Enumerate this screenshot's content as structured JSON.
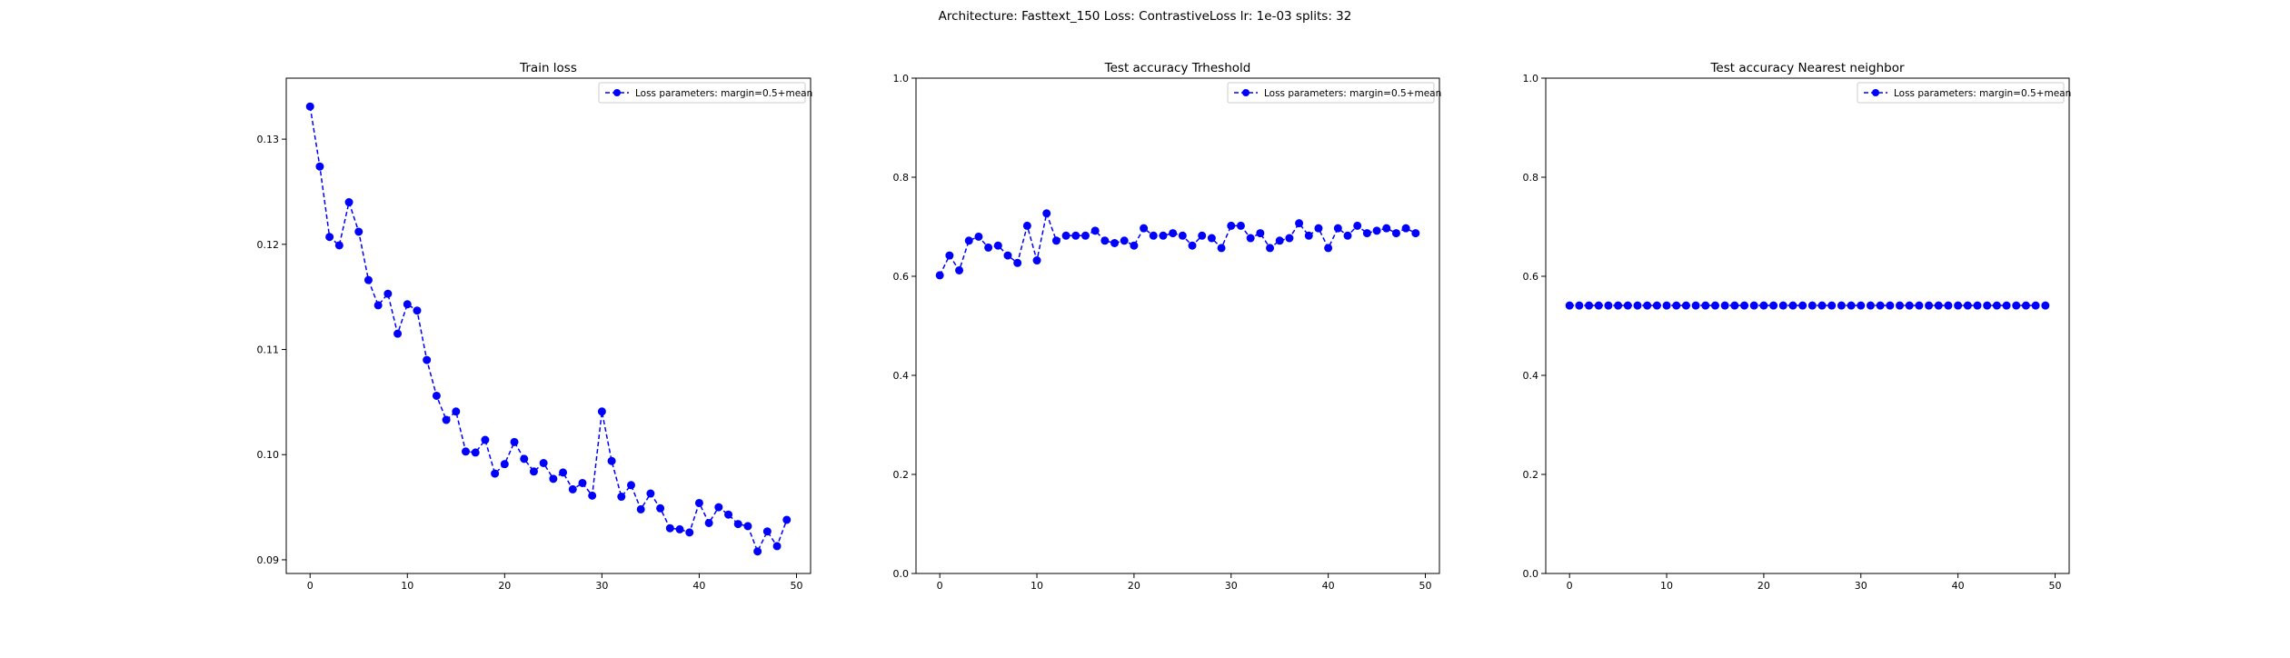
{
  "suptitle": "Architecture: Fasttext_150 Loss: ContrastiveLoss lr: 1e-03 splits: 32",
  "colors": {
    "series": "#0000ff",
    "axes": "#000000",
    "background": "#ffffff"
  },
  "chart_data": [
    {
      "type": "line",
      "title": "Train loss",
      "xlabel": "",
      "ylabel": "",
      "xlim": [
        -2.45,
        51.45
      ],
      "ylim": [
        0.0887,
        0.1358
      ],
      "xticks": [
        0,
        10,
        20,
        30,
        40,
        50
      ],
      "yticks": [
        0.09,
        0.1,
        0.11,
        0.12,
        0.13
      ],
      "ytick_labels": [
        "0.09",
        "0.10",
        "0.11",
        "0.12",
        "0.13"
      ],
      "grid": false,
      "legend_position": "top-right",
      "series": [
        {
          "name": "Loss parameters: margin=0.5+mean",
          "style": "dashed-with-circle-markers",
          "x": [
            0,
            1,
            2,
            3,
            4,
            5,
            6,
            7,
            8,
            9,
            10,
            11,
            12,
            13,
            14,
            15,
            16,
            17,
            18,
            19,
            20,
            21,
            22,
            23,
            24,
            25,
            26,
            27,
            28,
            29,
            30,
            31,
            32,
            33,
            34,
            35,
            36,
            37,
            38,
            39,
            40,
            41,
            42,
            43,
            44,
            45,
            46,
            47,
            48,
            49
          ],
          "values": [
            0.1331,
            0.1274,
            0.1207,
            0.1199,
            0.124,
            0.1212,
            0.1166,
            0.1142,
            0.1153,
            0.1115,
            0.1143,
            0.1137,
            0.109,
            0.1056,
            0.1033,
            0.1041,
            0.1003,
            0.1002,
            0.1014,
            0.0982,
            0.0991,
            0.1012,
            0.0996,
            0.0984,
            0.0992,
            0.0977,
            0.0983,
            0.0967,
            0.0973,
            0.0961,
            0.1041,
            0.0994,
            0.096,
            0.0971,
            0.0948,
            0.0963,
            0.0949,
            0.093,
            0.0929,
            0.0926,
            0.0954,
            0.0935,
            0.095,
            0.0943,
            0.0934,
            0.0932,
            0.0908,
            0.0927,
            0.0913,
            0.0938
          ]
        }
      ]
    },
    {
      "type": "line",
      "title": "Test accuracy Trheshold",
      "xlabel": "",
      "ylabel": "",
      "xlim": [
        -2.45,
        51.45
      ],
      "ylim": [
        0.0,
        1.0
      ],
      "xticks": [
        0,
        10,
        20,
        30,
        40,
        50
      ],
      "yticks": [
        0.0,
        0.2,
        0.4,
        0.6,
        0.8,
        1.0
      ],
      "ytick_labels": [
        "0.0",
        "0.2",
        "0.4",
        "0.6",
        "0.8",
        "1.0"
      ],
      "grid": false,
      "legend_position": "top-right",
      "series": [
        {
          "name": "Loss parameters: margin=0.5+mean",
          "style": "dashed-with-circle-markers",
          "x": [
            0,
            1,
            2,
            3,
            4,
            5,
            6,
            7,
            8,
            9,
            10,
            11,
            12,
            13,
            14,
            15,
            16,
            17,
            18,
            19,
            20,
            21,
            22,
            23,
            24,
            25,
            26,
            27,
            28,
            29,
            30,
            31,
            32,
            33,
            34,
            35,
            36,
            37,
            38,
            39,
            40,
            41,
            42,
            43,
            44,
            45,
            46,
            47,
            48,
            49
          ],
          "values": [
            0.602,
            0.642,
            0.612,
            0.672,
            0.68,
            0.658,
            0.662,
            0.642,
            0.627,
            0.702,
            0.632,
            0.727,
            0.672,
            0.682,
            0.682,
            0.682,
            0.692,
            0.672,
            0.667,
            0.672,
            0.662,
            0.697,
            0.682,
            0.682,
            0.687,
            0.682,
            0.662,
            0.682,
            0.677,
            0.657,
            0.702,
            0.702,
            0.677,
            0.687,
            0.657,
            0.672,
            0.677,
            0.707,
            0.682,
            0.697,
            0.657,
            0.697,
            0.682,
            0.702,
            0.687,
            0.692,
            0.697,
            0.687,
            0.697,
            0.687
          ]
        }
      ]
    },
    {
      "type": "line",
      "title": "Test accuracy Nearest neighbor",
      "xlabel": "",
      "ylabel": "",
      "xlim": [
        -2.45,
        51.45
      ],
      "ylim": [
        0.0,
        1.0
      ],
      "xticks": [
        0,
        10,
        20,
        30,
        40,
        50
      ],
      "yticks": [
        0.0,
        0.2,
        0.4,
        0.6,
        0.8,
        1.0
      ],
      "ytick_labels": [
        "0.0",
        "0.2",
        "0.4",
        "0.6",
        "0.8",
        "1.0"
      ],
      "grid": false,
      "legend_position": "top-right",
      "series": [
        {
          "name": "Loss parameters: margin=0.5+mean",
          "style": "dashed-with-circle-markers",
          "x": [
            0,
            1,
            2,
            3,
            4,
            5,
            6,
            7,
            8,
            9,
            10,
            11,
            12,
            13,
            14,
            15,
            16,
            17,
            18,
            19,
            20,
            21,
            22,
            23,
            24,
            25,
            26,
            27,
            28,
            29,
            30,
            31,
            32,
            33,
            34,
            35,
            36,
            37,
            38,
            39,
            40,
            41,
            42,
            43,
            44,
            45,
            46,
            47,
            48,
            49
          ],
          "values": [
            0.541,
            0.541,
            0.541,
            0.541,
            0.541,
            0.541,
            0.541,
            0.541,
            0.541,
            0.541,
            0.541,
            0.541,
            0.541,
            0.541,
            0.541,
            0.541,
            0.541,
            0.541,
            0.541,
            0.541,
            0.541,
            0.541,
            0.541,
            0.541,
            0.541,
            0.541,
            0.541,
            0.541,
            0.541,
            0.541,
            0.541,
            0.541,
            0.541,
            0.541,
            0.541,
            0.541,
            0.541,
            0.541,
            0.541,
            0.541,
            0.541,
            0.541,
            0.541,
            0.541,
            0.541,
            0.541,
            0.541,
            0.541,
            0.541,
            0.541
          ]
        }
      ]
    }
  ]
}
